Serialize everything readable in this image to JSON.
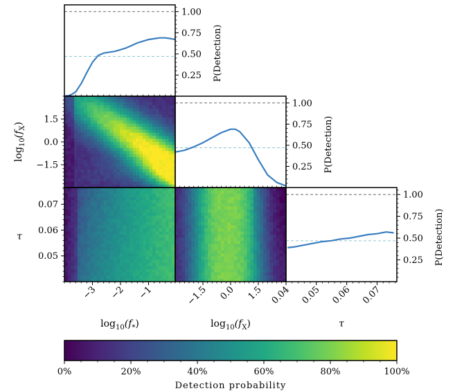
{
  "chart_data": [
    {
      "type": "line",
      "panel": "marginal",
      "variable": "log10(f*)",
      "y_label": "P(Detection)",
      "ylim": [
        0.0,
        1.08
      ],
      "yticks": [
        "1.00",
        "0.75",
        "0.50",
        "0.25"
      ],
      "ytick_values": [
        1.0,
        0.75,
        0.5,
        0.25
      ],
      "xlim": [
        -4.0,
        -0.05
      ],
      "reference_lines": [
        {
          "value": 1.0,
          "color": "#6a6a6a"
        },
        {
          "value": 0.47,
          "color": "#8fc6cf"
        }
      ],
      "series": [
        {
          "color": "#3a7ec0",
          "x": [
            -4.0,
            -3.8,
            -3.6,
            -3.4,
            -3.2,
            -3.0,
            -2.8,
            -2.6,
            -2.4,
            -2.2,
            -2.0,
            -1.8,
            -1.6,
            -1.4,
            -1.2,
            -1.0,
            -0.8,
            -0.6,
            -0.4,
            -0.2,
            -0.05
          ],
          "y": [
            0.0,
            0.01,
            0.05,
            0.15,
            0.28,
            0.4,
            0.48,
            0.51,
            0.52,
            0.53,
            0.55,
            0.57,
            0.6,
            0.63,
            0.65,
            0.67,
            0.68,
            0.69,
            0.69,
            0.68,
            0.67
          ]
        }
      ]
    },
    {
      "type": "line",
      "panel": "marginal",
      "variable": "log10(fx)",
      "y_label": "P(Detection)",
      "ylim": [
        0.0,
        1.08
      ],
      "yticks": [
        "1.00",
        "0.75",
        "0.50",
        "0.25"
      ],
      "ytick_values": [
        1.0,
        0.75,
        0.5,
        0.25
      ],
      "xlim": [
        -3.0,
        3.0
      ],
      "reference_lines": [
        {
          "value": 1.0,
          "color": "#6a6a6a"
        },
        {
          "value": 0.47,
          "color": "#8fc6cf"
        }
      ],
      "series": [
        {
          "color": "#3a7ec0",
          "x": [
            -3.0,
            -2.5,
            -2.0,
            -1.5,
            -1.0,
            -0.5,
            0.0,
            0.25,
            0.5,
            1.0,
            1.5,
            2.0,
            2.5,
            3.0
          ],
          "y": [
            0.42,
            0.44,
            0.48,
            0.53,
            0.59,
            0.65,
            0.69,
            0.69,
            0.66,
            0.53,
            0.33,
            0.15,
            0.06,
            0.02
          ]
        }
      ]
    },
    {
      "type": "line",
      "panel": "marginal",
      "variable": "tau",
      "y_label": "P(Detection)",
      "ylim": [
        0.0,
        1.08
      ],
      "yticks": [
        "1.00",
        "0.75",
        "0.50",
        "0.25"
      ],
      "ytick_values": [
        1.0,
        0.75,
        0.5,
        0.25
      ],
      "xlim": [
        0.04,
        0.0765
      ],
      "reference_lines": [
        {
          "value": 1.0,
          "color": "#6a6a6a"
        },
        {
          "value": 0.47,
          "color": "#8fc6cf"
        }
      ],
      "series": [
        {
          "color": "#3a7ec0",
          "x": [
            0.0405,
            0.043,
            0.046,
            0.049,
            0.052,
            0.055,
            0.058,
            0.061,
            0.064,
            0.067,
            0.07,
            0.073,
            0.0755
          ],
          "y": [
            0.39,
            0.4,
            0.42,
            0.44,
            0.46,
            0.47,
            0.49,
            0.5,
            0.52,
            0.54,
            0.55,
            0.57,
            0.56
          ]
        }
      ]
    },
    {
      "type": "heatmap",
      "panel": "joint",
      "x_variable": "log10(f*)",
      "y_variable": "log10(fx)",
      "xlim": [
        -4.0,
        -0.05
      ],
      "ylim": [
        -3.0,
        3.0
      ],
      "value_range": [
        0,
        1
      ]
    },
    {
      "type": "heatmap",
      "panel": "joint",
      "x_variable": "log10(f*)",
      "y_variable": "tau",
      "xlim": [
        -4.0,
        -0.05
      ],
      "ylim": [
        0.04,
        0.0765
      ],
      "value_range": [
        0,
        1
      ]
    },
    {
      "type": "heatmap",
      "panel": "joint",
      "x_variable": "log10(fx)",
      "y_variable": "tau",
      "xlim": [
        -3.0,
        3.0
      ],
      "ylim": [
        0.04,
        0.0765
      ],
      "value_range": [
        0,
        1
      ]
    }
  ],
  "axes": {
    "fx_ticks": {
      "labels": [
        "1.5",
        "0.0",
        "−1.5"
      ],
      "values": [
        1.5,
        0.0,
        -1.5
      ]
    },
    "tau_ticks": {
      "labels": [
        "0.07",
        "0.06",
        "0.05"
      ],
      "values": [
        0.07,
        0.06,
        0.05
      ]
    },
    "fstar_bottom_ticks": {
      "labels": [
        "−3",
        "−2",
        "−1"
      ],
      "values": [
        -3,
        -2,
        -1
      ]
    },
    "fx_bottom_ticks": {
      "labels": [
        "−1.5",
        "0.0",
        "1.5"
      ],
      "values": [
        -1.5,
        0.0,
        1.5
      ]
    },
    "tau_bottom_ticks": {
      "labels": [
        "0.04",
        "0.05",
        "0.06",
        "0.07"
      ],
      "values": [
        0.04,
        0.05,
        0.06,
        0.07
      ]
    },
    "label_fx_left": "log",
    "label_fx_left_sub": "10",
    "label_fx_left_arg": "(f",
    "label_fx_left_argsub": "X",
    "label_fx_left_close": ")",
    "label_tau_left": "τ",
    "label_bottom_fstar": "log",
    "label_bottom_fstar_sub": "10",
    "label_bottom_fstar_arg": "(f",
    "label_bottom_fstar_argsub": "*",
    "label_bottom_fstar_close": ")",
    "label_bottom_fx": "log",
    "label_bottom_fx_sub": "10",
    "label_bottom_fx_arg": "(f",
    "label_bottom_fx_argsub": "X",
    "label_bottom_fx_close": ")",
    "label_bottom_tau": "τ"
  },
  "colorbar": {
    "label": "Detection probability",
    "tick_labels": [
      "0%",
      "20%",
      "40%",
      "60%",
      "80%",
      "100%"
    ],
    "tick_values": [
      0.0,
      0.2,
      0.4,
      0.6,
      0.8,
      1.0
    ],
    "colormap": "viridis",
    "stops": [
      "#440154",
      "#482475",
      "#414487",
      "#355f8d",
      "#2a788e",
      "#21918c",
      "#22a884",
      "#44bf70",
      "#7ad151",
      "#bddf26",
      "#fde725"
    ]
  }
}
